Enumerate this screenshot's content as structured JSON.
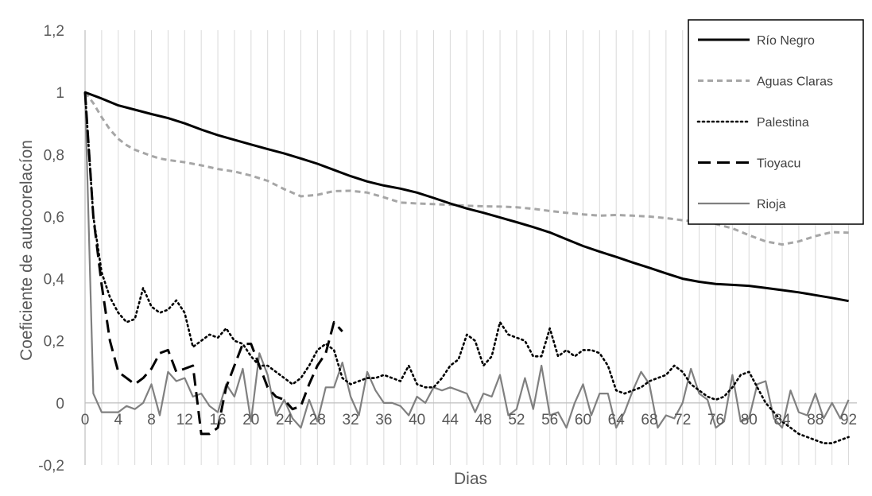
{
  "chart_data": {
    "type": "line",
    "xlabel": "Dias",
    "ylabel": "Coeficiente de autocorelacíon",
    "xlim": [
      0,
      93
    ],
    "ylim": [
      -0.2,
      1.2
    ],
    "x_ticks": [
      0,
      4,
      8,
      12,
      16,
      20,
      24,
      28,
      32,
      36,
      40,
      44,
      48,
      52,
      56,
      60,
      64,
      68,
      72,
      76,
      80,
      84,
      88,
      92
    ],
    "x_tick_labels": [
      "0",
      "4",
      "8",
      "12",
      "16",
      "20",
      "24",
      "28",
      "32",
      "36",
      "40",
      "44",
      "48",
      "52",
      "56",
      "60",
      "64",
      "68",
      "72",
      "76",
      "80",
      "84",
      "88",
      "92"
    ],
    "y_ticks": [
      -0.2,
      0,
      0.2,
      0.4,
      0.6,
      0.8,
      1,
      1.2
    ],
    "y_tick_labels": [
      "-0,2",
      "0",
      "0,2",
      "0,4",
      "0,6",
      "0,8",
      "1",
      "1,2"
    ],
    "grid": "vertical",
    "legend_position": "top-right",
    "series": [
      {
        "name": "Río Negro",
        "color": "#000000",
        "style": "solid",
        "width": 3,
        "x": [
          0,
          2,
          4,
          6,
          8,
          10,
          12,
          14,
          16,
          18,
          20,
          22,
          24,
          26,
          28,
          30,
          32,
          34,
          36,
          38,
          40,
          42,
          44,
          46,
          48,
          50,
          52,
          54,
          56,
          58,
          60,
          62,
          64,
          66,
          68,
          70,
          72,
          74,
          76,
          78,
          80,
          82,
          84,
          86,
          88,
          90,
          92
        ],
        "y": [
          1.0,
          0.98,
          0.958,
          0.944,
          0.93,
          0.917,
          0.9,
          0.88,
          0.862,
          0.847,
          0.832,
          0.817,
          0.803,
          0.787,
          0.77,
          0.75,
          0.73,
          0.713,
          0.7,
          0.69,
          0.677,
          0.66,
          0.642,
          0.626,
          0.612,
          0.597,
          0.582,
          0.566,
          0.549,
          0.527,
          0.505,
          0.487,
          0.47,
          0.452,
          0.435,
          0.417,
          0.4,
          0.39,
          0.383,
          0.38,
          0.377,
          0.37,
          0.363,
          0.356,
          0.347,
          0.338,
          0.328
        ]
      },
      {
        "name": "Aguas Claras",
        "color": "#a6a6a6",
        "style": "dash",
        "width": 3,
        "x": [
          0,
          1,
          2,
          3,
          4,
          5,
          6,
          7,
          8,
          9,
          10,
          12,
          14,
          16,
          18,
          20,
          22,
          24,
          26,
          28,
          30,
          32,
          34,
          36,
          38,
          40,
          42,
          44,
          46,
          48,
          50,
          52,
          54,
          56,
          58,
          60,
          62,
          64,
          66,
          68,
          70,
          72,
          74,
          76,
          78,
          80,
          82,
          84,
          86,
          88,
          90,
          92
        ],
        "y": [
          1.0,
          0.965,
          0.92,
          0.88,
          0.85,
          0.83,
          0.815,
          0.805,
          0.795,
          0.787,
          0.782,
          0.775,
          0.765,
          0.753,
          0.745,
          0.732,
          0.715,
          0.688,
          0.665,
          0.67,
          0.682,
          0.683,
          0.677,
          0.662,
          0.645,
          0.642,
          0.64,
          0.638,
          0.635,
          0.633,
          0.632,
          0.63,
          0.625,
          0.618,
          0.612,
          0.607,
          0.603,
          0.605,
          0.603,
          0.6,
          0.595,
          0.588,
          0.583,
          0.576,
          0.562,
          0.54,
          0.52,
          0.51,
          0.52,
          0.537,
          0.55,
          0.548
        ]
      },
      {
        "name": "Palestina",
        "color": "#000000",
        "style": "dot",
        "width": 2.6,
        "x": [
          0,
          1,
          2,
          3,
          4,
          5,
          6,
          7,
          8,
          9,
          10,
          11,
          12,
          13,
          14,
          15,
          16,
          17,
          18,
          19,
          20,
          21,
          22,
          23,
          24,
          25,
          26,
          27,
          28,
          29,
          30,
          31,
          32,
          33,
          34,
          35,
          36,
          37,
          38,
          39,
          40,
          41,
          42,
          43,
          44,
          45,
          46,
          47,
          48,
          49,
          50,
          51,
          52,
          53,
          54,
          55,
          56,
          57,
          58,
          59,
          60,
          61,
          62,
          63,
          64,
          65,
          66,
          67,
          68,
          69,
          70,
          71,
          72,
          73,
          74,
          75,
          76,
          77,
          78,
          79,
          80,
          81,
          82,
          83,
          84,
          85,
          86,
          87,
          88,
          89,
          90,
          91,
          92
        ],
        "y": [
          1.0,
          0.6,
          0.42,
          0.34,
          0.29,
          0.26,
          0.27,
          0.37,
          0.31,
          0.29,
          0.3,
          0.33,
          0.29,
          0.18,
          0.2,
          0.22,
          0.21,
          0.24,
          0.2,
          0.19,
          0.15,
          0.12,
          0.12,
          0.1,
          0.08,
          0.06,
          0.08,
          0.12,
          0.17,
          0.19,
          0.17,
          0.08,
          0.06,
          0.07,
          0.08,
          0.08,
          0.09,
          0.08,
          0.07,
          0.12,
          0.06,
          0.05,
          0.05,
          0.08,
          0.12,
          0.14,
          0.22,
          0.2,
          0.12,
          0.15,
          0.26,
          0.22,
          0.21,
          0.2,
          0.15,
          0.15,
          0.24,
          0.15,
          0.17,
          0.15,
          0.17,
          0.17,
          0.16,
          0.12,
          0.04,
          0.03,
          0.04,
          0.05,
          0.07,
          0.08,
          0.09,
          0.12,
          0.1,
          0.06,
          0.04,
          0.02,
          0.01,
          0.02,
          0.05,
          0.09,
          0.1,
          0.05,
          0.0,
          -0.03,
          -0.06,
          -0.08,
          -0.1,
          -0.11,
          -0.12,
          -0.13,
          -0.13,
          -0.12,
          -0.11
        ]
      },
      {
        "name": "Tioyacu",
        "color": "#000000",
        "style": "longdash",
        "width": 3,
        "x": [
          0,
          1,
          2,
          3,
          4,
          5,
          6,
          7,
          8,
          9,
          10,
          11,
          12,
          13,
          14,
          15,
          16,
          17,
          18,
          19,
          20,
          21,
          22,
          23,
          24,
          25,
          26,
          27,
          28,
          29,
          30,
          31
        ],
        "y": [
          1.0,
          0.6,
          0.38,
          0.2,
          0.1,
          0.08,
          0.06,
          0.08,
          0.11,
          0.16,
          0.17,
          0.1,
          0.11,
          0.12,
          -0.1,
          -0.1,
          -0.08,
          0.05,
          0.12,
          0.19,
          0.19,
          0.12,
          0.05,
          0.02,
          0.01,
          -0.02,
          -0.01,
          0.06,
          0.12,
          0.16,
          0.26,
          0.23
        ]
      },
      {
        "name": "Rioja",
        "color": "#808080",
        "style": "solid",
        "width": 2.2,
        "x": [
          0,
          1,
          2,
          3,
          4,
          5,
          6,
          7,
          8,
          9,
          10,
          11,
          12,
          13,
          14,
          15,
          16,
          17,
          18,
          19,
          20,
          21,
          22,
          23,
          24,
          25,
          26,
          27,
          28,
          29,
          30,
          31,
          32,
          33,
          34,
          35,
          36,
          37,
          38,
          39,
          40,
          41,
          42,
          43,
          44,
          45,
          46,
          47,
          48,
          49,
          50,
          51,
          52,
          53,
          54,
          55,
          56,
          57,
          58,
          59,
          60,
          61,
          62,
          63,
          64,
          65,
          66,
          67,
          68,
          69,
          70,
          71,
          72,
          73,
          74,
          75,
          76,
          77,
          78,
          79,
          80,
          81,
          82,
          83,
          84,
          85,
          86,
          87,
          88,
          89,
          90,
          91,
          92
        ],
        "y": [
          1.0,
          0.03,
          -0.03,
          -0.03,
          -0.03,
          -0.01,
          -0.02,
          0.0,
          0.06,
          -0.04,
          0.1,
          0.07,
          0.08,
          0.02,
          0.03,
          -0.01,
          -0.03,
          0.06,
          0.02,
          0.11,
          -0.06,
          0.16,
          0.09,
          -0.04,
          0.01,
          -0.05,
          -0.08,
          0.01,
          -0.06,
          0.05,
          0.05,
          0.13,
          0.02,
          -0.04,
          0.1,
          0.04,
          0.0,
          0.0,
          -0.01,
          -0.04,
          0.02,
          0.0,
          0.05,
          0.04,
          0.05,
          0.04,
          0.03,
          -0.03,
          0.03,
          0.02,
          0.09,
          -0.04,
          -0.02,
          0.08,
          -0.02,
          0.12,
          -0.04,
          -0.03,
          -0.08,
          0.0,
          0.06,
          -0.04,
          0.03,
          0.03,
          -0.08,
          -0.03,
          0.04,
          0.1,
          0.06,
          -0.08,
          -0.04,
          -0.05,
          0.0,
          0.11,
          0.03,
          0.01,
          -0.08,
          -0.06,
          0.09,
          -0.06,
          -0.05,
          0.06,
          0.07,
          -0.05,
          -0.08,
          0.04,
          -0.03,
          -0.04,
          0.03,
          -0.05,
          0.0,
          -0.05,
          0.01
        ]
      }
    ]
  }
}
